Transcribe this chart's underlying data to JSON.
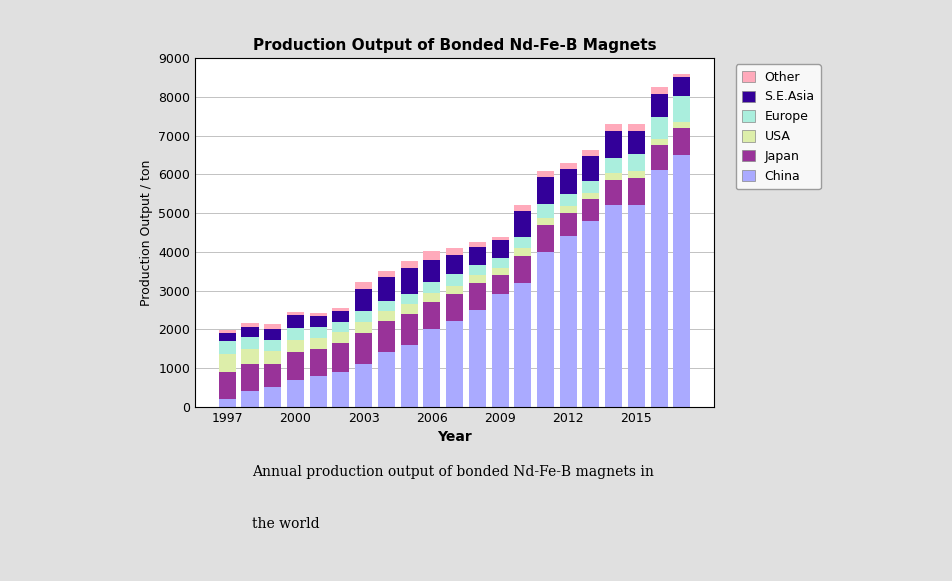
{
  "title": "Production Output of Bonded Nd-Fe-B Magnets",
  "xlabel": "Year",
  "ylabel": "Production Output / ton",
  "years": [
    1997,
    1998,
    1999,
    2000,
    2001,
    2002,
    2003,
    2004,
    2005,
    2006,
    2007,
    2008,
    2009,
    2010,
    2011,
    2012,
    2013,
    2014,
    2015,
    2016,
    2017
  ],
  "china": [
    200,
    400,
    500,
    700,
    800,
    900,
    1100,
    1400,
    1600,
    2000,
    2200,
    2500,
    2900,
    3200,
    4000,
    4400,
    4800,
    5200,
    5200,
    6100,
    6500
  ],
  "japan": [
    700,
    700,
    600,
    700,
    700,
    750,
    800,
    800,
    800,
    700,
    700,
    700,
    500,
    700,
    700,
    600,
    550,
    650,
    700,
    650,
    700
  ],
  "usa": [
    450,
    400,
    350,
    320,
    280,
    270,
    280,
    260,
    240,
    230,
    220,
    200,
    180,
    190,
    180,
    180,
    170,
    180,
    180,
    170,
    160
  ],
  "europe": [
    350,
    300,
    280,
    300,
    280,
    270,
    300,
    280,
    280,
    300,
    300,
    270,
    270,
    300,
    350,
    300,
    300,
    400,
    450,
    550,
    650
  ],
  "seasia": [
    200,
    250,
    280,
    350,
    280,
    270,
    550,
    600,
    650,
    550,
    500,
    450,
    450,
    650,
    700,
    650,
    650,
    700,
    600,
    600,
    500
  ],
  "other": [
    80,
    100,
    120,
    80,
    80,
    80,
    180,
    160,
    180,
    230,
    170,
    120,
    80,
    160,
    160,
    160,
    160,
    180,
    160,
    180,
    80
  ],
  "colors": {
    "china": "#aaaaff",
    "japan": "#993399",
    "usa": "#ddeeaa",
    "europe": "#aaeedd",
    "seasia": "#330099",
    "other": "#ffaabb"
  },
  "ylim": [
    0,
    9000
  ],
  "yticks": [
    0,
    1000,
    2000,
    3000,
    4000,
    5000,
    6000,
    7000,
    8000,
    9000
  ],
  "caption_line1": "Annual production output of bonded Nd-Fe-B magnets in",
  "caption_line2": "the world",
  "fig_bg": "#e0e0e0",
  "ax_bg": "#ffffff"
}
